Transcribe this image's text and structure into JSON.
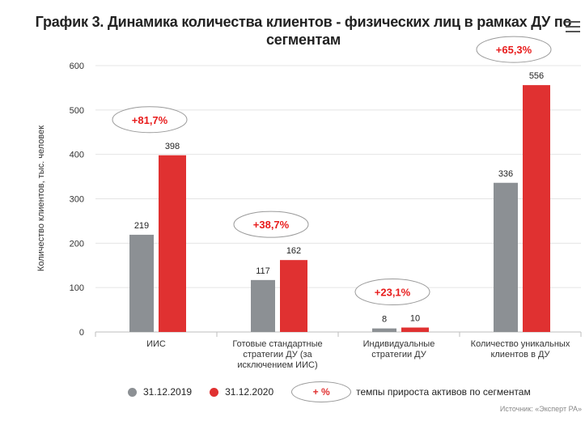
{
  "title": "График 3. Динамика количества клиентов - физических лиц в рамках ДУ по сегментам",
  "source": "Источник: «Эксперт РА»",
  "colors": {
    "series_2019": "#8c9094",
    "series_2020": "#e03131",
    "growth_text": "#e81c1c"
  },
  "legend": {
    "series_2019": "31.12.2019",
    "series_2020": "31.12.2020",
    "growth_symbol": "+ %",
    "growth_text": "темпы прироста активов по сегментам"
  },
  "chart_data": {
    "type": "bar",
    "title": "График 3. Динамика количества клиентов - физических лиц в рамках ДУ по сегментам",
    "ylabel": "Количество клиентов, тыс. человек",
    "xlabel": "",
    "ylim": [
      0,
      600
    ],
    "yticks": [
      0,
      100,
      200,
      300,
      400,
      500,
      600
    ],
    "grid": true,
    "legend_position": "bottom",
    "categories": [
      [
        "ИИС"
      ],
      [
        "Готовые стандартные",
        "стратегии ДУ (за",
        "исключением ИИС)"
      ],
      [
        "Индивидуальные",
        "стратегии ДУ"
      ],
      [
        "Количество уникальных",
        "клиентов в ДУ"
      ]
    ],
    "series": [
      {
        "name": "31.12.2019",
        "values": [
          219,
          117,
          8,
          336
        ]
      },
      {
        "name": "31.12.2020",
        "values": [
          398,
          162,
          10,
          556
        ]
      }
    ],
    "annotations": [
      "+81,7%",
      "+38,7%",
      "+23,1%",
      "+65,3%"
    ]
  }
}
